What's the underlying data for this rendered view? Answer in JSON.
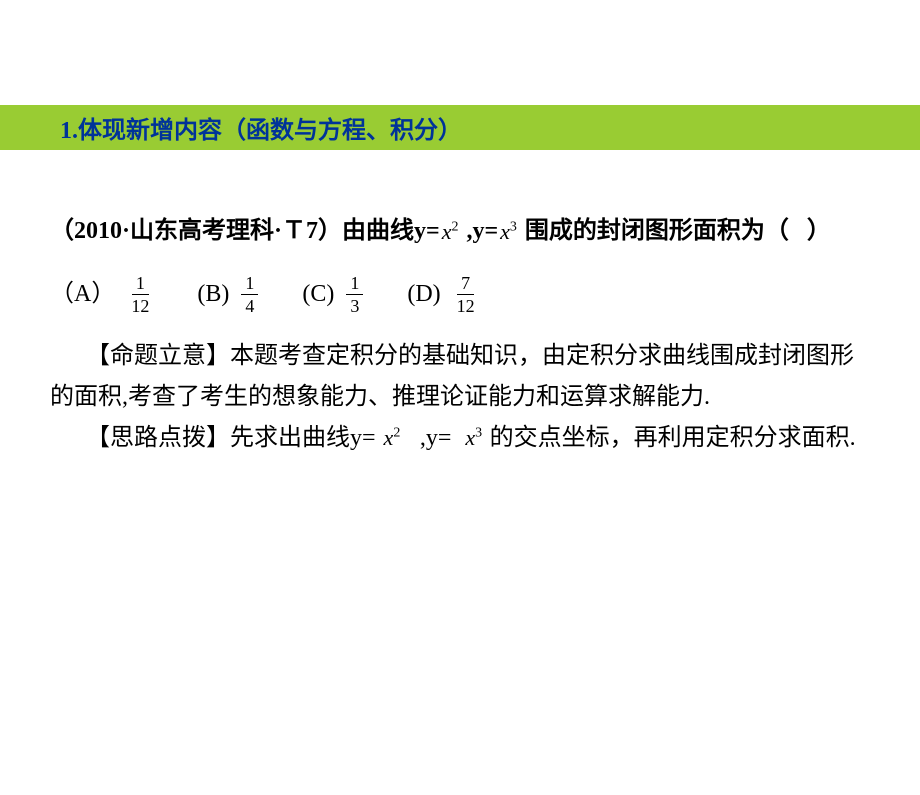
{
  "header": {
    "title": "1.体现新增内容（函数与方程、积分）",
    "bg_color": "#99cc33",
    "text_color": "#003399"
  },
  "question": {
    "source_prefix": "（2010·山东高考理科·Ｔ7）由曲线y=",
    "expr1_base": "x",
    "expr1_sup": "2",
    "middle1": " ,y=",
    "expr2_base": "x",
    "expr2_sup": "3",
    "suffix": " 围成的封闭图形面积为（   ）"
  },
  "options": {
    "a_label": "（A）",
    "a_num": "1",
    "a_den": "12",
    "b_label": "(B)",
    "b_num": "1",
    "b_den": "4",
    "c_label": "(C)",
    "c_num": "1",
    "c_den": "3",
    "d_label": "(D)",
    "d_num": "7",
    "d_den": "12"
  },
  "analysis": {
    "intent_label": "【命题立意】",
    "intent_text": "本题考查定积分的基础知识，由定积分求曲线围成封闭图形的面积,考查了考生的想象能力、推理论证能力和运算求解能力.",
    "hint_label": "【思路点拨】",
    "hint_prefix": "先求出曲线y=",
    "hint_expr1_base": "x",
    "hint_expr1_sup": "2",
    "hint_mid": "  ,y= ",
    "hint_expr2_base": "x",
    "hint_expr2_sup": "3",
    "hint_suffix": " 的交点坐标，再利用定积分求面积."
  }
}
